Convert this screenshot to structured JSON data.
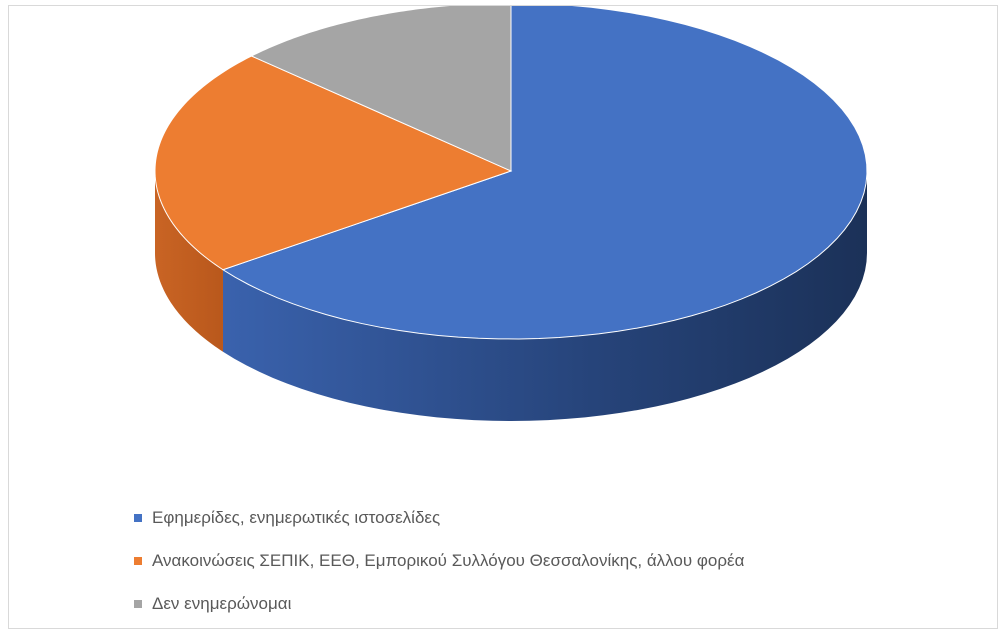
{
  "chart_data": {
    "type": "pie",
    "variant": "3d",
    "title": "",
    "categories": [
      "Εφημερίδες, ενημερωτικές ιστοσελίδες",
      "Ανακοινώσεις ΣΕΠΙΚ, ΕΕΘ, Εμπορικού Συλλόγου Θεσσαλονίκης, άλλου φορέα",
      "Δεν ενημερώνομαι"
    ],
    "values": [
      65,
      22,
      13
    ],
    "colors": [
      "#4472C4",
      "#ED7D31",
      "#A5A5A5"
    ],
    "legend_position": "bottom-left"
  }
}
